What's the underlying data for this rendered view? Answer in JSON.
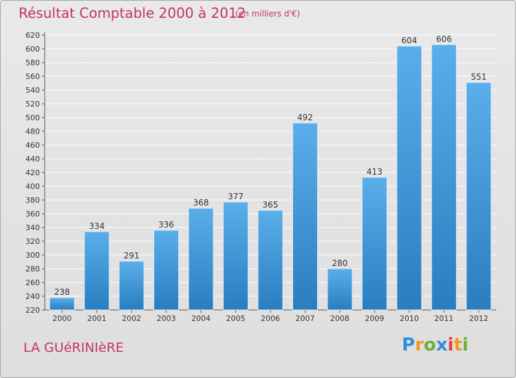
{
  "title": "Résultat Comptable 2000 à 2012",
  "subtitle": "(en milliers d'€)",
  "commune": "LA GUéRINIèRE",
  "brand": {
    "text": "Proxiti",
    "letters": [
      {
        "ch": "P",
        "color": "#2f8fd6"
      },
      {
        "ch": "r",
        "color": "#f39a1e"
      },
      {
        "ch": "o",
        "color": "#6ab233"
      },
      {
        "ch": "x",
        "color": "#2f8fd6"
      },
      {
        "ch": "i",
        "color": "#e23f3f"
      },
      {
        "ch": "t",
        "color": "#f39a1e"
      },
      {
        "ch": "i",
        "color": "#6ab233"
      }
    ]
  },
  "colors": {
    "bar_top": "#5aaeea",
    "bar_bottom": "#2a7ec0",
    "title": "#c4345f",
    "grid": "#ffffff",
    "text": "#333333"
  },
  "chart_data": {
    "type": "bar",
    "categories": [
      "2000",
      "2001",
      "2002",
      "2003",
      "2004",
      "2005",
      "2006",
      "2007",
      "2008",
      "2009",
      "2010",
      "2011",
      "2012"
    ],
    "values": [
      238,
      334,
      291,
      336,
      368,
      377,
      365,
      492,
      280,
      413,
      604,
      606,
      551
    ],
    "ylim": [
      220,
      620
    ],
    "yticks": [
      220,
      240,
      260,
      280,
      300,
      320,
      340,
      360,
      380,
      400,
      420,
      440,
      460,
      480,
      500,
      520,
      540,
      560,
      580,
      600,
      620
    ],
    "grid": true
  }
}
